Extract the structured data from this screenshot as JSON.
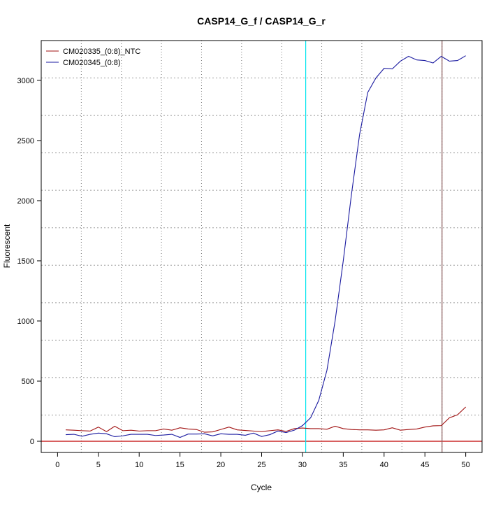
{
  "chart_data": {
    "type": "line",
    "title": "CASP14_G_f / CASP14_G_r",
    "xlabel": "Cycle",
    "ylabel": "Fluorescent",
    "xlim": [
      -2,
      52
    ],
    "ylim": [
      -93,
      3331
    ],
    "xticks": [
      0,
      5,
      10,
      15,
      20,
      25,
      30,
      35,
      40,
      45,
      50
    ],
    "yticks": [
      0,
      500,
      1000,
      1500,
      2000,
      2500,
      3000
    ],
    "grid": true,
    "legend_position": "top-left",
    "x": [
      1,
      2,
      3,
      4,
      5,
      6,
      7,
      8,
      9,
      10,
      11,
      12,
      13,
      14,
      15,
      16,
      17,
      18,
      19,
      20,
      21,
      22,
      23,
      24,
      25,
      26,
      27,
      28,
      29,
      30,
      31,
      32,
      33,
      34,
      35,
      36,
      37,
      38,
      39,
      40,
      41,
      42,
      43,
      44,
      45,
      46,
      47,
      48,
      49,
      50
    ],
    "series": [
      {
        "name": "CM020335_(0:8)_NTC",
        "color": "#a01010",
        "values": [
          95,
          92,
          88,
          85,
          118,
          80,
          125,
          88,
          92,
          85,
          88,
          88,
          102,
          92,
          112,
          102,
          98,
          75,
          78,
          98,
          118,
          95,
          90,
          85,
          80,
          88,
          95,
          82,
          105,
          110,
          105,
          105,
          100,
          125,
          105,
          98,
          95,
          95,
          92,
          95,
          112,
          92,
          98,
          102,
          118,
          128,
          130,
          195,
          220,
          285
        ]
      },
      {
        "name": "CM020345_(0:8)",
        "color": "#1a1aa0",
        "values": [
          55,
          58,
          42,
          58,
          68,
          62,
          38,
          45,
          58,
          58,
          58,
          48,
          52,
          58,
          32,
          60,
          60,
          62,
          45,
          62,
          58,
          58,
          50,
          68,
          40,
          55,
          85,
          72,
          92,
          130,
          195,
          340,
          590,
          1000,
          1500,
          2050,
          2550,
          2900,
          3020,
          3100,
          3095,
          3160,
          3200,
          3170,
          3165,
          3145,
          3200,
          3160,
          3165,
          3205
        ]
      }
    ],
    "threshold": {
      "value": 0,
      "color": "#c00000"
    },
    "vlines": [
      {
        "cycle": 30.4,
        "color": "#00e5ee"
      },
      {
        "cycle": 47.1,
        "color": "#8b6060"
      }
    ]
  }
}
